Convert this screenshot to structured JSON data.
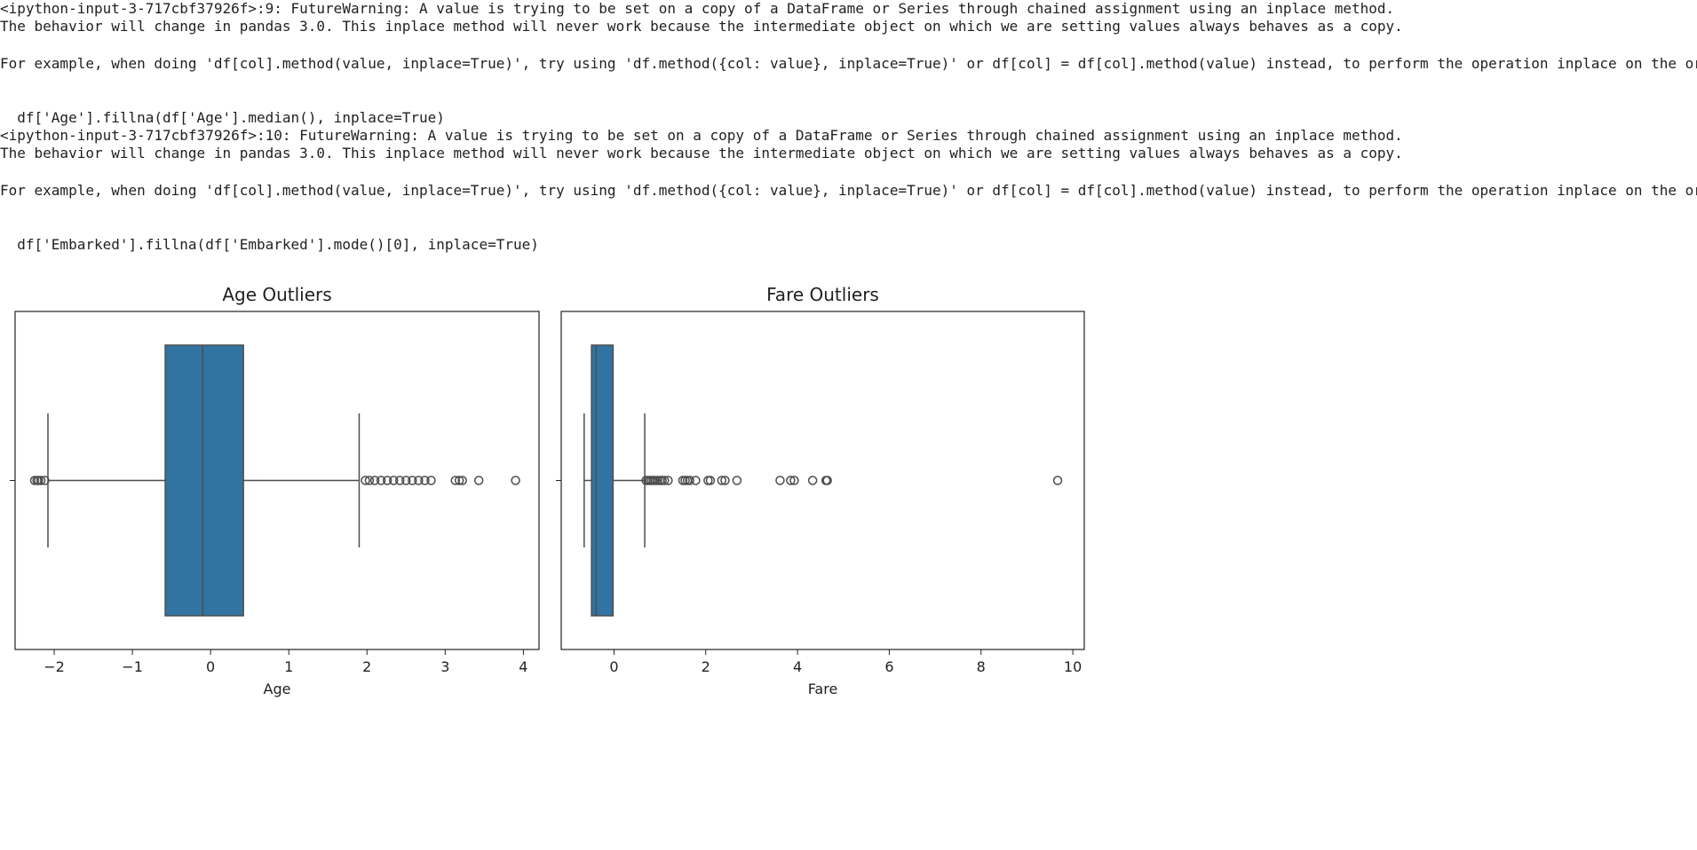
{
  "output": {
    "warning1": {
      "header": "<ipython-input-3-717cbf37926f>:9: FutureWarning: A value is trying to be set on a copy of a DataFrame or Series through chained assignment using an inplace method.",
      "behavior": "The behavior will change in pandas 3.0. This inplace method will never work because the intermediate object on which we are setting values always behaves as a copy.",
      "example": "For example, when doing 'df[col].method(value, inplace=True)', try using 'df.method({col: value}, inplace=True)' or df[col] = df[col].method(value) instead, to perform the operation inplace on the or",
      "code": "  df['Age'].fillna(df['Age'].median(), inplace=True)"
    },
    "warning2": {
      "header": "<ipython-input-3-717cbf37926f>:10: FutureWarning: A value is trying to be set on a copy of a DataFrame or Series through chained assignment using an inplace method.",
      "behavior": "The behavior will change in pandas 3.0. This inplace method will never work because the intermediate object on which we are setting values always behaves as a copy.",
      "example": "For example, when doing 'df[col].method(value, inplace=True)', try using 'df.method({col: value}, inplace=True)' or df[col] = df[col].method(value) instead, to perform the operation inplace on the or",
      "code": "  df['Embarked'].fillna(df['Embarked'].mode()[0], inplace=True)"
    }
  },
  "chart_data": [
    {
      "type": "box",
      "orientation": "horizontal",
      "title": "Age Outliers",
      "xlabel": "Age",
      "xlim": [
        -2.5,
        4.2
      ],
      "xticks": [
        -2,
        -1,
        0,
        1,
        2,
        3,
        4
      ],
      "xtick_labels": [
        "−2",
        "−1",
        "0",
        "1",
        "2",
        "3",
        "4"
      ],
      "box": {
        "whisker_low": -2.08,
        "q1": -0.58,
        "median": -0.1,
        "q3": 0.42,
        "whisker_high": 1.9
      },
      "outliers": [
        -2.25,
        -2.22,
        -2.2,
        -2.17,
        -2.12,
        1.98,
        2.03,
        2.1,
        2.18,
        2.26,
        2.34,
        2.42,
        2.5,
        2.58,
        2.66,
        2.74,
        2.82,
        3.13,
        3.18,
        3.22,
        3.43,
        3.9
      ],
      "color": "#3274a1"
    },
    {
      "type": "box",
      "orientation": "horizontal",
      "title": "Fare Outliers",
      "xlabel": "Fare",
      "xlim": [
        -1.15,
        10.25
      ],
      "xticks": [
        0,
        2,
        4,
        6,
        8,
        10
      ],
      "xtick_labels": [
        "0",
        "2",
        "4",
        "6",
        "8",
        "10"
      ],
      "box": {
        "whisker_low": -0.65,
        "q1": -0.49,
        "median": -0.39,
        "q3": -0.02,
        "whisker_high": 0.67
      },
      "outliers": [
        0.7,
        0.74,
        0.78,
        0.82,
        0.86,
        0.9,
        0.95,
        1.0,
        1.05,
        1.1,
        1.18,
        1.5,
        1.55,
        1.6,
        1.65,
        1.78,
        2.05,
        2.1,
        2.35,
        2.42,
        2.68,
        3.62,
        3.85,
        3.93,
        4.33,
        4.62,
        4.65,
        9.67
      ],
      "color": "#3274a1"
    }
  ]
}
